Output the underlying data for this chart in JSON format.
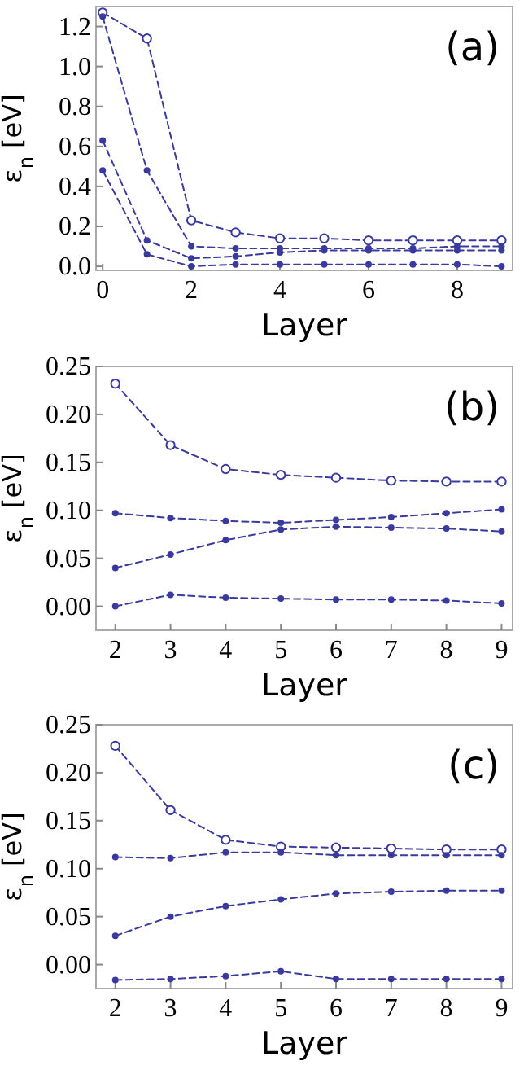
{
  "chart_data": [
    {
      "type": "line",
      "xlabel": "Layer",
      "ylabel": "ε$_{n}$ [eV]",
      "annotations": [
        "(a)"
      ],
      "x": [
        0,
        1,
        2,
        3,
        4,
        5,
        6,
        7,
        8,
        9
      ],
      "xlim": [
        -0.15,
        9.25
      ],
      "xticks": [
        0,
        2,
        4,
        6,
        8
      ],
      "ylim": [
        -0.02,
        1.3
      ],
      "yticks": [
        {
          "value": 0,
          "label": "0.0"
        },
        {
          "value": 0.2,
          "label": "0.2"
        },
        {
          "value": 0.4,
          "label": "0.4"
        },
        {
          "value": 0.6,
          "label": "0.6"
        },
        {
          "value": 0.8,
          "label": "0.8"
        },
        {
          "value": 1,
          "label": "1.0"
        },
        {
          "value": 1.2,
          "label": "1.2"
        }
      ],
      "grid": false,
      "line_style": "dashed",
      "series": [
        {
          "color": "#3a3a9e",
          "marker": "circle-open",
          "values": [
            1.27,
            1.14,
            0.23,
            0.17,
            0.14,
            0.14,
            0.13,
            0.13,
            0.13,
            0.13
          ]
        },
        {
          "color": "#3a3a9e",
          "marker": "circle",
          "values": [
            1.25,
            0.48,
            0.1,
            0.09,
            0.09,
            0.09,
            0.09,
            0.09,
            0.1,
            0.1
          ]
        },
        {
          "color": "#3a3a9e",
          "marker": "circle",
          "values": [
            0.63,
            0.13,
            0.04,
            0.05,
            0.07,
            0.08,
            0.08,
            0.08,
            0.08,
            0.08
          ]
        },
        {
          "color": "#3a3a9e",
          "marker": "circle",
          "values": [
            0.48,
            0.06,
            0,
            0.01,
            0.01,
            0.01,
            0.01,
            0.01,
            0.01,
            0
          ]
        }
      ]
    },
    {
      "type": "line",
      "xlabel": "Layer",
      "ylabel": "ε$_{n}$ [eV]",
      "annotations": [
        "(b)"
      ],
      "x": [
        2,
        3,
        4,
        5,
        6,
        7,
        8,
        9
      ],
      "xlim": [
        1.65,
        9.2
      ],
      "xticks": [
        2,
        3,
        4,
        5,
        6,
        7,
        8,
        9
      ],
      "ylim": [
        -0.025,
        0.25
      ],
      "yticks": [
        {
          "value": 0,
          "label": "0.00"
        },
        {
          "value": 0.05,
          "label": "0.05"
        },
        {
          "value": 0.1,
          "label": "0.10"
        },
        {
          "value": 0.15,
          "label": "0.15"
        },
        {
          "value": 0.2,
          "label": "0.20"
        },
        {
          "value": 0.25,
          "label": "0.25"
        }
      ],
      "grid": false,
      "line_style": "dashed",
      "series": [
        {
          "color": "#3a3a9e",
          "marker": "circle-open",
          "values": [
            0.232,
            0.168,
            0.143,
            0.137,
            0.134,
            0.131,
            0.13,
            0.13
          ]
        },
        {
          "color": "#3a3a9e",
          "marker": "circle",
          "values": [
            0.097,
            0.092,
            0.089,
            0.087,
            0.09,
            0.093,
            0.097,
            0.101
          ]
        },
        {
          "color": "#3a3a9e",
          "marker": "circle",
          "values": [
            0.04,
            0.054,
            0.069,
            0.08,
            0.083,
            0.082,
            0.081,
            0.078
          ]
        },
        {
          "color": "#3a3a9e",
          "marker": "circle",
          "values": [
            0,
            0.012,
            0.009,
            0.008,
            0.007,
            0.007,
            0.006,
            0.003
          ]
        }
      ]
    },
    {
      "type": "line",
      "xlabel": "Layer",
      "ylabel": "ε$_{n}$ [eV]",
      "annotations": [
        "(c)"
      ],
      "x": [
        2,
        3,
        4,
        5,
        6,
        7,
        8,
        9
      ],
      "xlim": [
        1.65,
        9.2
      ],
      "xticks": [
        2,
        3,
        4,
        5,
        6,
        7,
        8,
        9
      ],
      "ylim": [
        -0.025,
        0.25
      ],
      "yticks": [
        {
          "value": 0,
          "label": "0.00"
        },
        {
          "value": 0.05,
          "label": "0.05"
        },
        {
          "value": 0.1,
          "label": "0.10"
        },
        {
          "value": 0.15,
          "label": "0.15"
        },
        {
          "value": 0.2,
          "label": "0.20"
        },
        {
          "value": 0.25,
          "label": "0.25"
        }
      ],
      "grid": false,
      "line_style": "dashed",
      "series": [
        {
          "color": "#3a3a9e",
          "marker": "circle-open",
          "values": [
            0.228,
            0.161,
            0.13,
            0.123,
            0.122,
            0.121,
            0.12,
            0.12
          ]
        },
        {
          "color": "#3a3a9e",
          "marker": "circle",
          "values": [
            0.112,
            0.111,
            0.117,
            0.117,
            0.114,
            0.114,
            0.114,
            0.114
          ]
        },
        {
          "color": "#3a3a9e",
          "marker": "circle",
          "values": [
            0.03,
            0.05,
            0.061,
            0.068,
            0.074,
            0.076,
            0.077,
            0.077
          ]
        },
        {
          "color": "#3a3a9e",
          "marker": "circle",
          "values": [
            -0.016,
            -0.015,
            -0.012,
            -0.007,
            -0.015,
            -0.015,
            -0.015,
            -0.015
          ]
        }
      ]
    }
  ]
}
